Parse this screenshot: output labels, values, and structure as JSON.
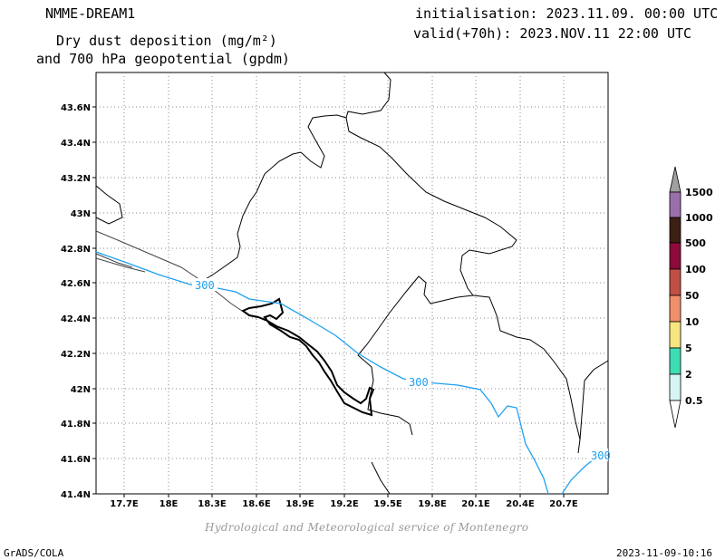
{
  "header": {
    "model_name": "NMME-DREAM1",
    "product_line_1": "Dry dust deposition (mg/m²)",
    "product_line_2": "and 700 hPa geopotential (gpdm)",
    "init_time": "initialisation: 2023.11.09. 00:00 UTC",
    "valid_time": "valid(+70h): 2023.NOV.11 22:00 UTC"
  },
  "map": {
    "lon_range": [
      17.5,
      21.0
    ],
    "lat_range": [
      41.4,
      43.8
    ],
    "lon_ticks": [
      "17.7E",
      "18E",
      "18.3E",
      "18.6E",
      "18.9E",
      "19.2E",
      "19.5E",
      "19.8E",
      "20.1E",
      "20.4E",
      "20.7E"
    ],
    "lat_ticks": [
      "41.4N",
      "41.6N",
      "41.8N",
      "42N",
      "42.2N",
      "42.4N",
      "42.6N",
      "42.8N",
      "43N",
      "43.2N",
      "43.4N",
      "43.6N"
    ],
    "contour_labels": [
      "300",
      "300",
      "300"
    ],
    "contour_color": "#1ea0f0"
  },
  "legend": {
    "levels": [
      "0.5",
      "2",
      "5",
      "10",
      "50",
      "100",
      "500",
      "1000",
      "1500"
    ],
    "colors": [
      "#d8f5f5",
      "#40dcb4",
      "#f5e680",
      "#f0906a",
      "#c05046",
      "#8c0a3c",
      "#3c2014",
      "#9a70aa",
      "#a0a0a0"
    ]
  },
  "footer": {
    "credit": "Hydrological and Meteorological service of Montenegro",
    "software": "GrADS/COLA",
    "timestamp": "2023-11-09-10:16"
  }
}
